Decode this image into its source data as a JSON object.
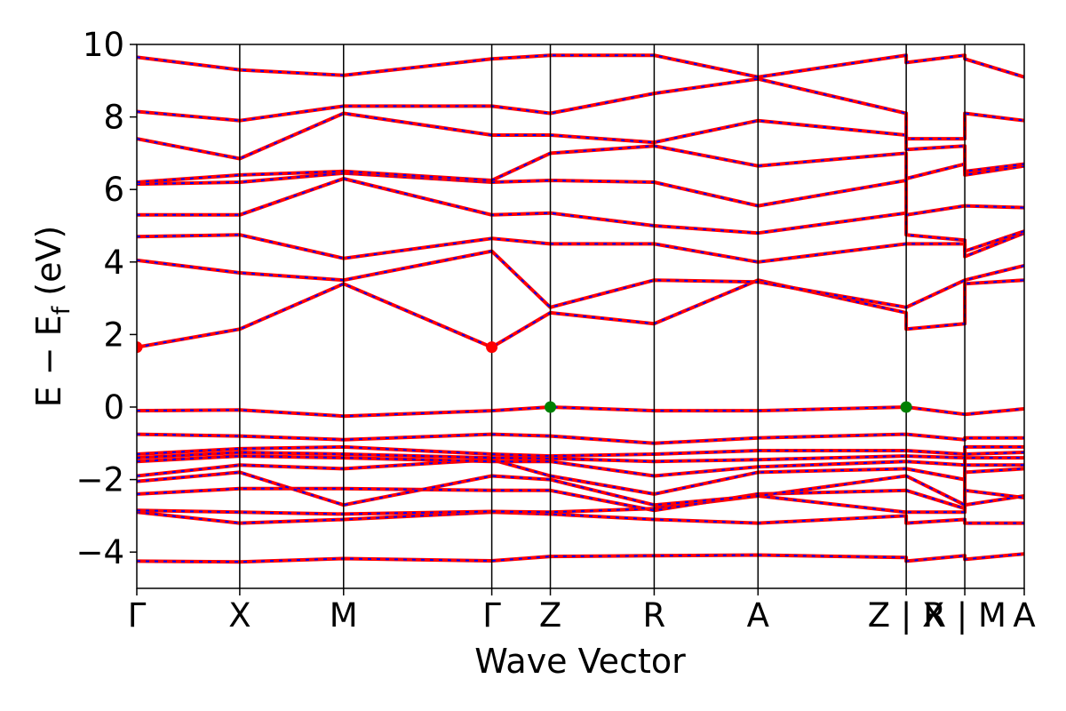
{
  "chart_data": {
    "type": "line",
    "title": "",
    "xlabel": "Wave Vector",
    "ylabel": "E − E",
    "ylabel_sub": "f",
    "ylabel_unit": " (eV)",
    "ylim": [
      -5,
      10
    ],
    "yticks": [
      -4,
      -2,
      0,
      2,
      4,
      6,
      8,
      10
    ],
    "ytick_labels": [
      "−4",
      "−2",
      "0",
      "2",
      "4",
      "6",
      "8",
      "10"
    ],
    "xlim": [
      0,
      100
    ],
    "grid": false,
    "legend": "none",
    "kpoints": [
      {
        "label": "Γ",
        "x": 0
      },
      {
        "label": "X",
        "x": 11.6
      },
      {
        "label": "M",
        "x": 23.3
      },
      {
        "label": "Γ",
        "x": 40.0
      },
      {
        "label": "Z",
        "x": 46.6
      },
      {
        "label": "R",
        "x": 58.3
      },
      {
        "label": "A",
        "x": 70.0
      },
      {
        "label": "Z | X",
        "x": 86.7
      },
      {
        "label": "R | M",
        "x": 93.3
      },
      {
        "label": "A",
        "x": 100.0
      }
    ],
    "colors": {
      "primary": "#ff0000",
      "overlay": "#0000ff",
      "cbm_marker": "#ff0000",
      "vbm_marker": "#008000"
    },
    "markers": [
      {
        "type": "CBM",
        "x": 0,
        "y": 1.65
      },
      {
        "type": "CBM",
        "x": 40.0,
        "y": 1.65
      },
      {
        "type": "VBM",
        "x": 46.6,
        "y": 0.0
      },
      {
        "type": "VBM",
        "x": 86.7,
        "y": 0.0
      }
    ],
    "series": [
      {
        "values": [
          [
            0,
            -4.25
          ],
          [
            11.6,
            -4.27
          ],
          [
            23.3,
            -4.18
          ],
          [
            40,
            -4.24
          ],
          [
            46.6,
            -4.12
          ],
          [
            58.3,
            -4.1
          ],
          [
            70,
            -4.08
          ],
          [
            86.7,
            -4.15
          ],
          [
            86.7,
            -4.25
          ],
          [
            93.3,
            -4.1
          ],
          [
            93.3,
            -4.2
          ],
          [
            100,
            -4.05
          ]
        ]
      },
      {
        "values": [
          [
            0,
            -2.9
          ],
          [
            11.6,
            -3.2
          ],
          [
            23.3,
            -3.1
          ],
          [
            40,
            -2.9
          ],
          [
            46.6,
            -2.95
          ],
          [
            58.3,
            -3.1
          ],
          [
            70,
            -3.2
          ],
          [
            86.7,
            -3.0
          ],
          [
            86.7,
            -3.2
          ],
          [
            93.3,
            -3.1
          ],
          [
            93.3,
            -3.2
          ],
          [
            100,
            -3.2
          ]
        ]
      },
      {
        "values": [
          [
            0,
            -2.85
          ],
          [
            11.6,
            -2.9
          ],
          [
            23.3,
            -2.95
          ],
          [
            40,
            -2.88
          ],
          [
            46.6,
            -2.9
          ],
          [
            58.3,
            -2.8
          ],
          [
            70,
            -2.45
          ],
          [
            86.7,
            -2.9
          ],
          [
            86.7,
            -2.9
          ],
          [
            93.3,
            -2.9
          ],
          [
            93.3,
            -2.7
          ],
          [
            100,
            -2.45
          ]
        ]
      },
      {
        "values": [
          [
            0,
            -2.4
          ],
          [
            11.6,
            -2.25
          ],
          [
            23.3,
            -2.25
          ],
          [
            40,
            -2.3
          ],
          [
            46.6,
            -2.3
          ],
          [
            58.3,
            -2.85
          ],
          [
            70,
            -2.4
          ],
          [
            86.7,
            -2.3
          ],
          [
            86.7,
            -2.3
          ],
          [
            93.3,
            -2.8
          ],
          [
            93.3,
            -2.3
          ],
          [
            100,
            -2.5
          ]
        ]
      },
      {
        "values": [
          [
            0,
            -2.05
          ],
          [
            11.6,
            -1.8
          ],
          [
            23.3,
            -2.7
          ],
          [
            40,
            -1.9
          ],
          [
            46.6,
            -2.0
          ],
          [
            58.3,
            -2.7
          ],
          [
            70,
            -2.45
          ],
          [
            86.7,
            -1.9
          ],
          [
            86.7,
            -1.9
          ],
          [
            93.3,
            -2.7
          ],
          [
            93.3,
            -1.8
          ],
          [
            100,
            -1.7
          ]
        ]
      },
      {
        "values": [
          [
            0,
            -1.9
          ],
          [
            11.6,
            -1.6
          ],
          [
            23.3,
            -1.7
          ],
          [
            40,
            -1.45
          ],
          [
            46.6,
            -1.9
          ],
          [
            58.3,
            -2.4
          ],
          [
            70,
            -1.8
          ],
          [
            86.7,
            -1.7
          ],
          [
            86.7,
            -1.7
          ],
          [
            93.3,
            -2.0
          ],
          [
            93.3,
            -1.6
          ],
          [
            100,
            -1.6
          ]
        ]
      },
      {
        "values": [
          [
            0,
            -1.5
          ],
          [
            11.6,
            -1.35
          ],
          [
            23.3,
            -1.4
          ],
          [
            40,
            -1.5
          ],
          [
            46.6,
            -1.5
          ],
          [
            58.3,
            -1.9
          ],
          [
            70,
            -1.65
          ],
          [
            86.7,
            -1.5
          ],
          [
            86.7,
            -1.5
          ],
          [
            93.3,
            -1.6
          ],
          [
            93.3,
            -1.4
          ],
          [
            100,
            -1.4
          ]
        ]
      },
      {
        "values": [
          [
            0,
            -1.4
          ],
          [
            11.6,
            -1.25
          ],
          [
            23.3,
            -1.3
          ],
          [
            40,
            -1.4
          ],
          [
            46.6,
            -1.42
          ],
          [
            58.3,
            -1.5
          ],
          [
            70,
            -1.45
          ],
          [
            86.7,
            -1.35
          ],
          [
            86.7,
            -1.35
          ],
          [
            93.3,
            -1.4
          ],
          [
            93.3,
            -1.3
          ],
          [
            100,
            -1.25
          ]
        ]
      },
      {
        "values": [
          [
            0,
            -1.3
          ],
          [
            11.6,
            -1.15
          ],
          [
            23.3,
            -1.1
          ],
          [
            40,
            -1.3
          ],
          [
            46.6,
            -1.35
          ],
          [
            58.3,
            -1.3
          ],
          [
            70,
            -1.2
          ],
          [
            86.7,
            -1.2
          ],
          [
            86.7,
            -1.2
          ],
          [
            93.3,
            -1.3
          ],
          [
            93.3,
            -1.1
          ],
          [
            100,
            -1.1
          ]
        ]
      },
      {
        "values": [
          [
            0,
            -0.75
          ],
          [
            11.6,
            -0.8
          ],
          [
            23.3,
            -0.9
          ],
          [
            40,
            -0.75
          ],
          [
            46.6,
            -0.8
          ],
          [
            58.3,
            -1.0
          ],
          [
            70,
            -0.85
          ],
          [
            86.7,
            -0.75
          ],
          [
            86.7,
            -0.75
          ],
          [
            93.3,
            -0.9
          ],
          [
            93.3,
            -0.85
          ],
          [
            100,
            -0.85
          ]
        ]
      },
      {
        "values": [
          [
            0,
            -0.1
          ],
          [
            11.6,
            -0.08
          ],
          [
            23.3,
            -0.25
          ],
          [
            40,
            -0.1
          ],
          [
            46.6,
            0.0
          ],
          [
            58.3,
            -0.1
          ],
          [
            70,
            -0.1
          ],
          [
            86.7,
            0.0
          ],
          [
            86.7,
            0.0
          ],
          [
            93.3,
            -0.2
          ],
          [
            93.3,
            -0.2
          ],
          [
            100,
            -0.05
          ]
        ]
      },
      {
        "values": [
          [
            0,
            1.65
          ],
          [
            11.6,
            2.15
          ],
          [
            23.3,
            3.4
          ],
          [
            40,
            1.65
          ],
          [
            46.6,
            2.6
          ],
          [
            58.3,
            2.3
          ],
          [
            70,
            3.5
          ],
          [
            86.7,
            2.6
          ],
          [
            86.7,
            2.15
          ],
          [
            93.3,
            2.3
          ],
          [
            93.3,
            3.4
          ],
          [
            100,
            3.5
          ]
        ]
      },
      {
        "values": [
          [
            0,
            4.05
          ],
          [
            11.6,
            3.7
          ],
          [
            23.3,
            3.5
          ],
          [
            40,
            4.3
          ],
          [
            46.6,
            2.75
          ],
          [
            58.3,
            3.5
          ],
          [
            70,
            3.45
          ],
          [
            86.7,
            2.75
          ],
          [
            86.7,
            2.75
          ],
          [
            93.3,
            3.5
          ],
          [
            93.3,
            3.5
          ],
          [
            100,
            3.9
          ]
        ]
      },
      {
        "values": [
          [
            0,
            4.7
          ],
          [
            11.6,
            4.75
          ],
          [
            23.3,
            4.1
          ],
          [
            40,
            4.65
          ],
          [
            46.6,
            4.5
          ],
          [
            58.3,
            4.5
          ],
          [
            70,
            4.0
          ],
          [
            86.7,
            4.5
          ],
          [
            86.7,
            4.5
          ],
          [
            93.3,
            4.5
          ],
          [
            93.3,
            4.15
          ],
          [
            100,
            4.8
          ]
        ]
      },
      {
        "values": [
          [
            0,
            5.3
          ],
          [
            11.6,
            5.3
          ],
          [
            23.3,
            6.3
          ],
          [
            40,
            5.3
          ],
          [
            46.6,
            5.35
          ],
          [
            58.3,
            5.0
          ],
          [
            70,
            4.8
          ],
          [
            86.7,
            5.35
          ],
          [
            86.7,
            4.75
          ],
          [
            93.3,
            4.6
          ],
          [
            93.3,
            4.3
          ],
          [
            100,
            4.85
          ]
        ]
      },
      {
        "values": [
          [
            0,
            6.15
          ],
          [
            11.6,
            6.2
          ],
          [
            23.3,
            6.45
          ],
          [
            40,
            6.2
          ],
          [
            46.6,
            6.25
          ],
          [
            58.3,
            6.2
          ],
          [
            70,
            5.55
          ],
          [
            86.7,
            6.25
          ],
          [
            86.7,
            5.3
          ],
          [
            93.3,
            5.55
          ],
          [
            93.3,
            5.55
          ],
          [
            100,
            5.5
          ]
        ]
      },
      {
        "values": [
          [
            0,
            6.2
          ],
          [
            11.6,
            6.4
          ],
          [
            23.3,
            6.5
          ],
          [
            40,
            6.25
          ],
          [
            46.6,
            7.0
          ],
          [
            58.3,
            7.2
          ],
          [
            70,
            6.65
          ],
          [
            86.7,
            7.0
          ],
          [
            86.7,
            6.3
          ],
          [
            93.3,
            6.7
          ],
          [
            93.3,
            6.4
          ],
          [
            100,
            6.65
          ]
        ]
      },
      {
        "values": [
          [
            0,
            7.4
          ],
          [
            11.6,
            6.85
          ],
          [
            23.3,
            8.1
          ],
          [
            40,
            7.5
          ],
          [
            46.6,
            7.5
          ],
          [
            58.3,
            7.3
          ],
          [
            70,
            7.9
          ],
          [
            86.7,
            7.5
          ],
          [
            86.7,
            7.1
          ],
          [
            93.3,
            7.2
          ],
          [
            93.3,
            6.5
          ],
          [
            100,
            6.7
          ]
        ]
      },
      {
        "values": [
          [
            0,
            8.15
          ],
          [
            11.6,
            7.9
          ],
          [
            23.3,
            8.3
          ],
          [
            40,
            8.3
          ],
          [
            46.6,
            8.1
          ],
          [
            58.3,
            8.65
          ],
          [
            70,
            9.05
          ],
          [
            86.7,
            8.1
          ],
          [
            86.7,
            7.4
          ],
          [
            93.3,
            7.4
          ],
          [
            93.3,
            8.1
          ],
          [
            100,
            7.9
          ]
        ]
      },
      {
        "values": [
          [
            0,
            9.65
          ],
          [
            11.6,
            9.3
          ],
          [
            23.3,
            9.15
          ],
          [
            40,
            9.6
          ],
          [
            46.6,
            9.7
          ],
          [
            58.3,
            9.7
          ],
          [
            70,
            9.1
          ],
          [
            86.7,
            9.7
          ],
          [
            86.7,
            9.5
          ],
          [
            93.3,
            9.7
          ],
          [
            93.3,
            9.6
          ],
          [
            100,
            9.1
          ]
        ]
      }
    ]
  }
}
